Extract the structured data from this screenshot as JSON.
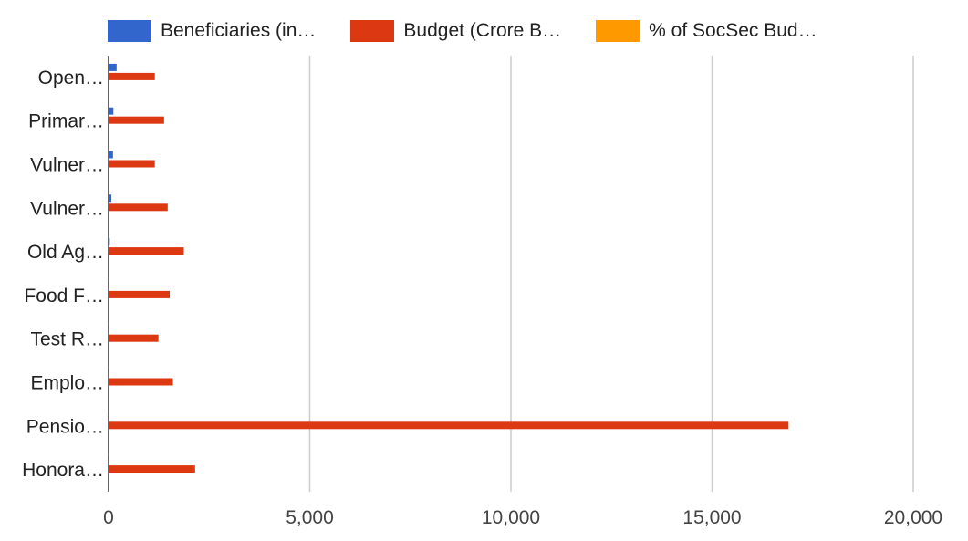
{
  "chart_data": {
    "type": "bar",
    "orientation": "horizontal",
    "categories": [
      "Open…",
      "Primar…",
      "Vulner…",
      "Vulner…",
      "Old Ag…",
      "Food F…",
      "Test R…",
      "Emplo…",
      "Pensio…",
      "Honora…"
    ],
    "series": [
      {
        "name": "Beneficiaries (in…",
        "color": "#3366cc",
        "values": [
          200,
          120,
          110,
          70,
          30,
          10,
          10,
          10,
          20,
          10
        ]
      },
      {
        "name": "Budget (Crore B…",
        "color": "#dc3912",
        "values": [
          1150,
          1380,
          1150,
          1470,
          1870,
          1520,
          1240,
          1600,
          16900,
          2150
        ]
      },
      {
        "name": "% of SocSec Bud…",
        "color": "#ff9900",
        "values": [
          0,
          0,
          0,
          0,
          0,
          0,
          0,
          0,
          0,
          0
        ]
      }
    ],
    "xlim": [
      0,
      20000
    ],
    "xticks": [
      0,
      5000,
      10000,
      15000,
      20000
    ],
    "xtick_labels": [
      "0",
      "5,000",
      "10,000",
      "15,000",
      "20,000"
    ],
    "grid": true,
    "legend_position": "top"
  }
}
